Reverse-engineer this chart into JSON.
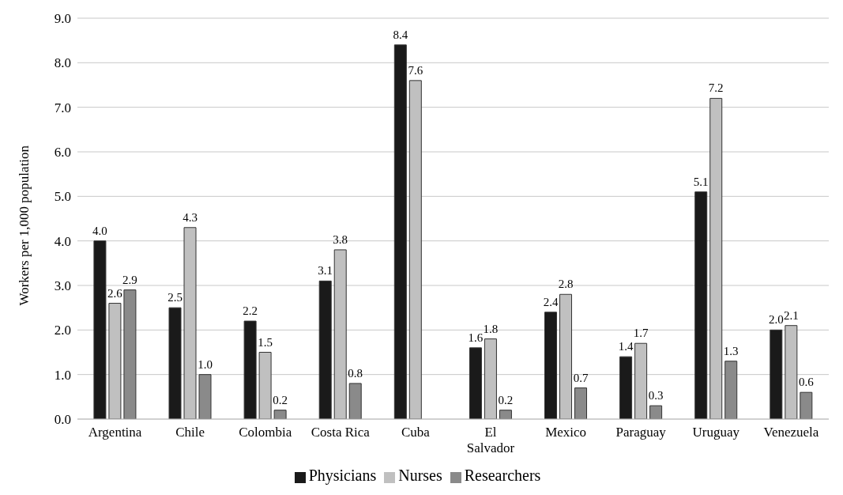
{
  "chart_data": {
    "type": "bar",
    "ylabel": "Workers per 1,000 population",
    "categories": [
      "Argentina",
      "Chile",
      "Colombia",
      "Costa Rica",
      "Cuba",
      "El Salvador",
      "Mexico",
      "Paraguay",
      "Uruguay",
      "Venezuela"
    ],
    "series": [
      {
        "name": "Physicians",
        "color": "#1a1a1a",
        "values": [
          4.0,
          2.5,
          2.2,
          3.1,
          8.4,
          1.6,
          2.4,
          1.4,
          5.1,
          2.0
        ],
        "value_labels": [
          "4.0",
          "2.5",
          "2.2",
          "3.1",
          "8.4",
          "1.6",
          "2.4",
          "1.4",
          "5.1",
          "2.0"
        ]
      },
      {
        "name": "Nurses",
        "color": "#c0c0c0",
        "values": [
          2.6,
          4.3,
          1.5,
          3.8,
          7.6,
          1.8,
          2.8,
          1.7,
          7.2,
          2.1
        ],
        "value_labels": [
          "2.6",
          "4.3",
          "1.5",
          "3.8",
          "7.6",
          "1.8",
          "2.8",
          "1.7",
          "7.2",
          "2.1"
        ]
      },
      {
        "name": "Researchers",
        "color": "#8a8a8a",
        "values": [
          2.9,
          1.0,
          0.2,
          0.8,
          null,
          0.2,
          0.7,
          0.3,
          1.3,
          0.6
        ],
        "value_labels": [
          "2.9",
          "1.0",
          "0.2",
          "0.8",
          null,
          "0.2",
          "0.7",
          "0.3",
          "1.3",
          "0.6"
        ]
      }
    ],
    "ylim": [
      0,
      9
    ],
    "yticks": [
      {
        "value": 0,
        "label": "0.0"
      },
      {
        "value": 1,
        "label": "1.0"
      },
      {
        "value": 2,
        "label": "2.0"
      },
      {
        "value": 3,
        "label": "3.0"
      },
      {
        "value": 4,
        "label": "4.0"
      },
      {
        "value": 5,
        "label": "5.0"
      },
      {
        "value": 6,
        "label": "6.0"
      },
      {
        "value": 7,
        "label": "7.0"
      },
      {
        "value": 8,
        "label": "8.0"
      },
      {
        "value": 9,
        "label": "9.0"
      }
    ],
    "grid": "y",
    "legend": "bottom"
  }
}
